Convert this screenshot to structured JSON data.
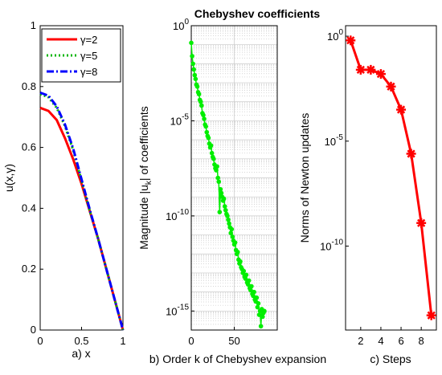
{
  "figure_title": "Chebyshev coefficients",
  "chart_data": [
    {
      "panel": "a",
      "type": "line",
      "xlabel": "a) x",
      "ylabel": "u(x,γ)",
      "xlim": [
        0,
        1
      ],
      "ylim": [
        0,
        1
      ],
      "xticks": [
        "0",
        "0.5",
        "1"
      ],
      "yticks": [
        "0",
        "0.2",
        "0.4",
        "0.6",
        "0.8",
        "1"
      ],
      "legend_position": "top-right",
      "series": [
        {
          "name": "γ=2",
          "color": "#ff0000",
          "style": "solid",
          "x": [
            0,
            0.1,
            0.2,
            0.3,
            0.4,
            0.5,
            0.6,
            0.7,
            0.8,
            0.9,
            1.0
          ],
          "y": [
            0.73,
            0.72,
            0.69,
            0.63,
            0.56,
            0.48,
            0.39,
            0.3,
            0.2,
            0.1,
            0.0
          ]
        },
        {
          "name": "γ=5",
          "color": "#00b400",
          "style": "dotted",
          "x": [
            0,
            0.1,
            0.2,
            0.3,
            0.4,
            0.5,
            0.6,
            0.7,
            0.8,
            0.9,
            1.0
          ],
          "y": [
            0.775,
            0.765,
            0.73,
            0.67,
            0.59,
            0.49,
            0.39,
            0.3,
            0.2,
            0.1,
            0.0
          ]
        },
        {
          "name": "γ=8",
          "color": "#0000ff",
          "style": "dashdot",
          "x": [
            0,
            0.1,
            0.2,
            0.3,
            0.4,
            0.5,
            0.6,
            0.7,
            0.8,
            0.9,
            1.0
          ],
          "y": [
            0.78,
            0.77,
            0.735,
            0.675,
            0.595,
            0.495,
            0.395,
            0.3,
            0.2,
            0.1,
            0.0
          ]
        }
      ]
    },
    {
      "panel": "b",
      "type": "line",
      "xlabel": "b) Order k of Chebyshev expansion",
      "ylabel": "Magnitude |u_k| of coefficients",
      "ylabel_main": "Magnitude |u",
      "ylabel_sub": "k",
      "ylabel_tail": "| of coefficients",
      "yscale": "log",
      "xlim": [
        0,
        100
      ],
      "ylim_log10": [
        -16,
        0
      ],
      "xticks": [
        "0",
        "50"
      ],
      "yticks_exponents": [
        0,
        -5,
        -10,
        -15
      ],
      "grid": "on",
      "series": [
        {
          "name": "",
          "color": "#00ee00",
          "x": [
            0,
            1,
            2,
            3,
            4,
            5,
            6,
            7,
            8,
            9,
            10,
            11,
            12,
            13,
            14,
            15,
            16,
            17,
            18,
            19,
            20,
            21,
            22,
            23,
            24,
            25,
            26,
            27,
            28,
            29,
            30,
            31,
            32,
            33,
            34,
            35,
            36,
            37,
            38,
            39,
            40,
            41,
            42,
            43,
            44,
            45,
            46,
            47,
            48,
            49,
            50,
            51,
            52,
            53,
            54,
            55,
            56,
            57,
            58,
            59,
            60,
            61,
            62,
            63,
            64,
            65,
            66,
            67,
            68,
            69,
            70,
            71,
            72,
            73,
            74,
            75,
            76,
            77,
            78,
            79,
            80,
            81,
            82,
            83,
            84,
            85
          ],
          "y_log10": [
            -0.9,
            -1.6,
            -2.0,
            -2.3,
            -2.6,
            -2.8,
            -3.1,
            -3.2,
            -3.5,
            -3.6,
            -3.9,
            -4.0,
            -4.2,
            -4.6,
            -4.7,
            -4.9,
            -5.2,
            -5.3,
            -5.6,
            -5.8,
            -5.9,
            -6.2,
            -6.4,
            -6.3,
            -6.7,
            -6.9,
            -7.0,
            -7.3,
            -7.5,
            -7.6,
            -7.4,
            -8.0,
            -8.2,
            -9.8,
            -8.6,
            -8.8,
            -9.0,
            -9.2,
            -9.1,
            -9.5,
            -9.7,
            -9.9,
            -10.0,
            -10.2,
            -10.4,
            -10.6,
            -10.9,
            -10.7,
            -11.1,
            -11.3,
            -11.5,
            -11.4,
            -11.8,
            -12.0,
            -11.9,
            -12.3,
            -12.5,
            -12.4,
            -12.7,
            -12.8,
            -13.0,
            -12.9,
            -13.2,
            -13.3,
            -13.1,
            -13.5,
            -13.6,
            -13.4,
            -13.8,
            -13.9,
            -13.7,
            -14.1,
            -14.2,
            -14.0,
            -14.4,
            -14.5,
            -14.3,
            -14.8,
            -14.6,
            -15.2,
            -15.0,
            -15.8,
            -14.9,
            -15.3,
            -15.1,
            -15.0
          ]
        }
      ]
    },
    {
      "panel": "c",
      "type": "line",
      "xlabel": "c) Steps",
      "ylabel": "Norms of Newton updates",
      "yscale": "log",
      "xlim": [
        0.5,
        9.5
      ],
      "ylim_log10": [
        -14,
        0.5
      ],
      "xticks": [
        "2",
        "4",
        "6",
        "8"
      ],
      "yticks_exponents": [
        0,
        -5,
        -10
      ],
      "series": [
        {
          "name": "",
          "color": "#ff0000",
          "marker": "star",
          "x": [
            1,
            2,
            3,
            4,
            5,
            6,
            7,
            8,
            9
          ],
          "y_log10": [
            -0.2,
            -1.6,
            -1.6,
            -1.8,
            -2.4,
            -3.5,
            -5.6,
            -8.9,
            -13.3
          ]
        }
      ]
    }
  ]
}
